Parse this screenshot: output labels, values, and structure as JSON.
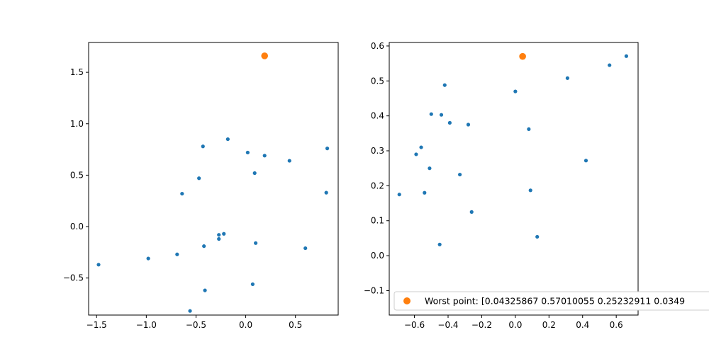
{
  "colors": {
    "series": "#1f77b4",
    "highlight": "#ff7f0e",
    "axis": "#000000",
    "legend_border": "#cccccc"
  },
  "chart_data": [
    {
      "type": "scatter",
      "title": "",
      "xlabel": "",
      "ylabel": "",
      "xlim": [
        -1.58,
        0.93
      ],
      "ylim": [
        -0.86,
        1.79
      ],
      "xticks": [
        -1.5,
        -1.0,
        -0.5,
        0.0,
        0.5
      ],
      "xtick_labels": [
        "−1.5",
        "−1.0",
        "−0.5",
        "0.0",
        "0.5"
      ],
      "yticks": [
        -0.5,
        0.0,
        0.5,
        1.0,
        1.5
      ],
      "ytick_labels": [
        "−0.5",
        "0.0",
        "0.5",
        "1.0",
        "1.5"
      ],
      "grid": false,
      "series": [
        {
          "x": [
            -1.48,
            -0.98,
            -0.69,
            -0.64,
            -0.56,
            -0.47,
            -0.43,
            -0.42,
            -0.41,
            -0.27,
            -0.27,
            -0.22,
            -0.18,
            0.02,
            0.07,
            0.09,
            0.1,
            0.19,
            0.44,
            0.6,
            0.81,
            0.82
          ],
          "y": [
            -0.37,
            -0.31,
            -0.27,
            0.32,
            -0.82,
            0.47,
            0.78,
            -0.19,
            -0.62,
            -0.08,
            -0.12,
            -0.07,
            0.85,
            0.72,
            -0.56,
            0.52,
            -0.16,
            0.69,
            0.64,
            -0.21,
            0.33,
            0.76
          ]
        },
        {
          "x": [
            0.19
          ],
          "y": [
            1.66
          ]
        }
      ]
    },
    {
      "type": "scatter",
      "title": "",
      "xlabel": "",
      "ylabel": "",
      "xlim": [
        -0.75,
        0.73
      ],
      "ylim": [
        -0.17,
        0.61
      ],
      "xticks": [
        -0.6,
        -0.4,
        -0.2,
        0.0,
        0.2,
        0.4,
        0.6
      ],
      "xtick_labels": [
        "−0.6",
        "−0.4",
        "−0.2",
        "0.0",
        "0.2",
        "0.4",
        "0.6"
      ],
      "yticks": [
        -0.1,
        0.0,
        0.1,
        0.2,
        0.3,
        0.4,
        0.5,
        0.6
      ],
      "ytick_labels": [
        "−0.1",
        "0.0",
        "0.1",
        "0.2",
        "0.3",
        "0.4",
        "0.5",
        "0.6"
      ],
      "grid": false,
      "legend_placement": "lower right",
      "series": [
        {
          "x": [
            -0.69,
            -0.59,
            -0.56,
            -0.54,
            -0.51,
            -0.5,
            -0.45,
            -0.44,
            -0.42,
            -0.39,
            -0.33,
            -0.28,
            -0.26,
            0.0,
            0.08,
            0.09,
            0.13,
            0.31,
            0.42,
            0.56,
            0.66
          ],
          "y": [
            0.175,
            0.29,
            0.31,
            0.18,
            0.25,
            0.405,
            0.032,
            0.403,
            0.488,
            0.38,
            0.232,
            0.375,
            0.125,
            0.47,
            0.362,
            0.187,
            0.054,
            0.508,
            0.272,
            0.545,
            0.571
          ]
        },
        {
          "name": "Worst point: [0.04325867 0.57010055 0.25232911 0.0349",
          "x": [
            0.04325867
          ],
          "y": [
            0.57010055
          ]
        }
      ]
    }
  ]
}
